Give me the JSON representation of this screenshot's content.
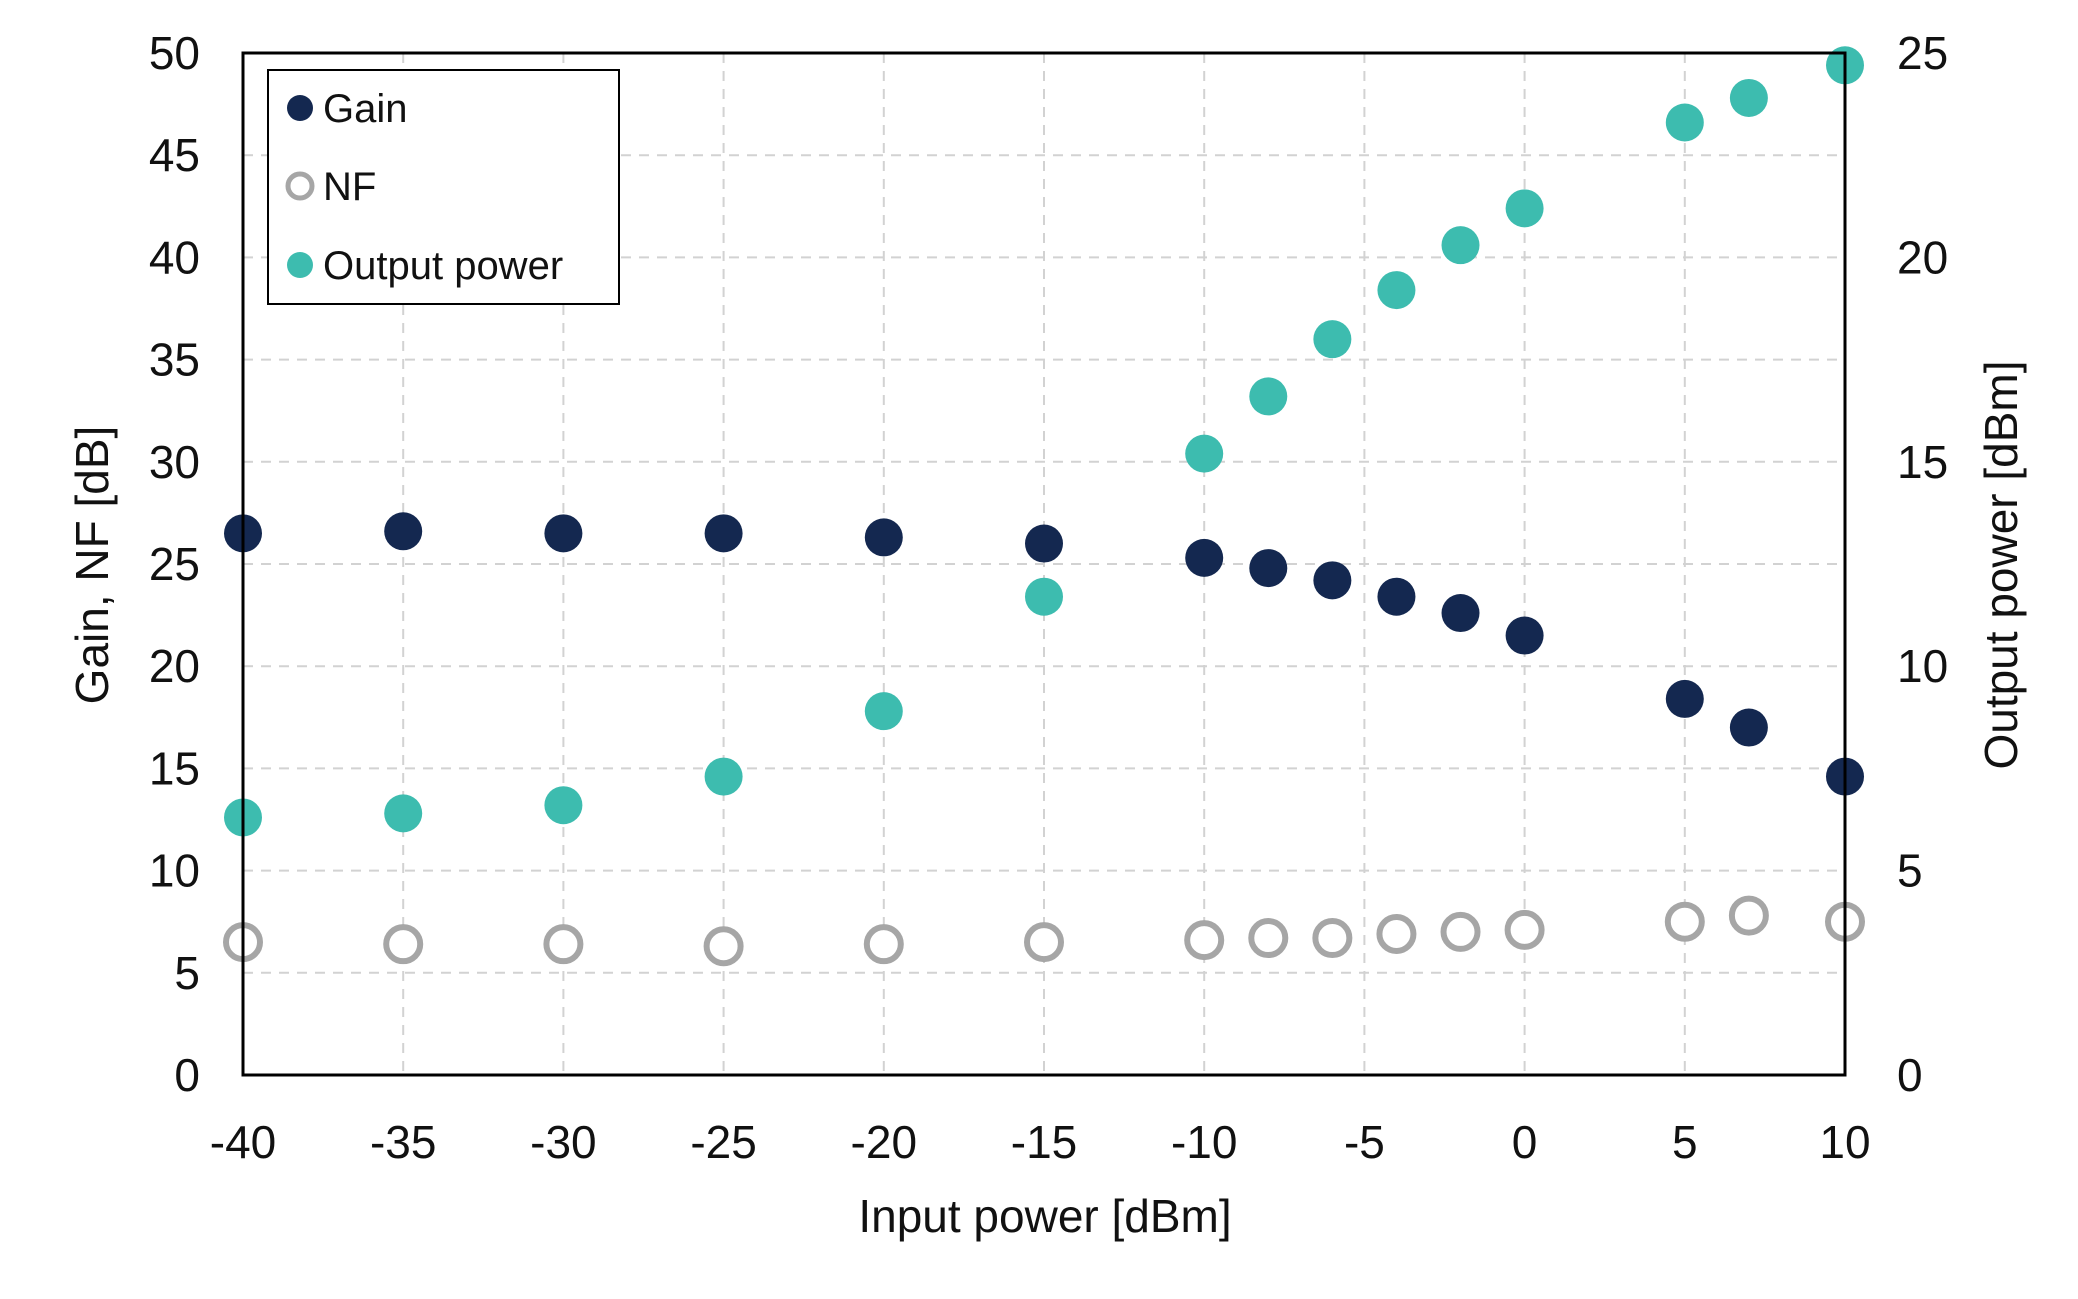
{
  "chart_data": {
    "type": "scatter",
    "title": "",
    "xlabel": "Input power [dBm]",
    "ylabel": "Gain, NF [dB]",
    "y2label": "Output power [dBm]",
    "xlim": [
      -40,
      10
    ],
    "ylim": [
      0,
      50
    ],
    "y2lim": [
      0,
      25
    ],
    "x_ticks": [
      "-40",
      "-35",
      "-30",
      "-25",
      "-20",
      "-15",
      "-10",
      "-5",
      "0",
      "5",
      "10"
    ],
    "y_ticks": [
      "0",
      "5",
      "10",
      "15",
      "20",
      "25",
      "30",
      "35",
      "40",
      "45",
      "50"
    ],
    "y2_ticks": [
      "0",
      "5",
      "10",
      "15",
      "20",
      "25"
    ],
    "grid": true,
    "legend_position": "top-left",
    "x": [
      -40,
      -35,
      -30,
      -25,
      -20,
      -15,
      -10,
      -8,
      -6,
      -4,
      -2,
      0,
      5,
      7,
      10
    ],
    "series": [
      {
        "name": "Gain",
        "axis": "left",
        "marker": "filled",
        "color": "#142850",
        "values": [
          26.5,
          26.6,
          26.5,
          26.5,
          26.3,
          26.0,
          25.3,
          24.8,
          24.2,
          23.4,
          22.6,
          21.5,
          18.4,
          17.0,
          14.6
        ]
      },
      {
        "name": "NF",
        "axis": "left",
        "marker": "hollow",
        "color": "#a6a6a6",
        "values": [
          6.5,
          6.4,
          6.4,
          6.3,
          6.4,
          6.5,
          6.6,
          6.7,
          6.7,
          6.9,
          7.0,
          7.1,
          7.5,
          7.8,
          7.5
        ]
      },
      {
        "name": "Output power",
        "axis": "right",
        "marker": "filled",
        "color": "#3dbcaf",
        "values": [
          6.3,
          6.4,
          6.6,
          7.3,
          8.9,
          11.7,
          15.2,
          16.6,
          18.0,
          19.2,
          20.3,
          21.2,
          23.3,
          23.9,
          24.7
        ]
      }
    ]
  }
}
